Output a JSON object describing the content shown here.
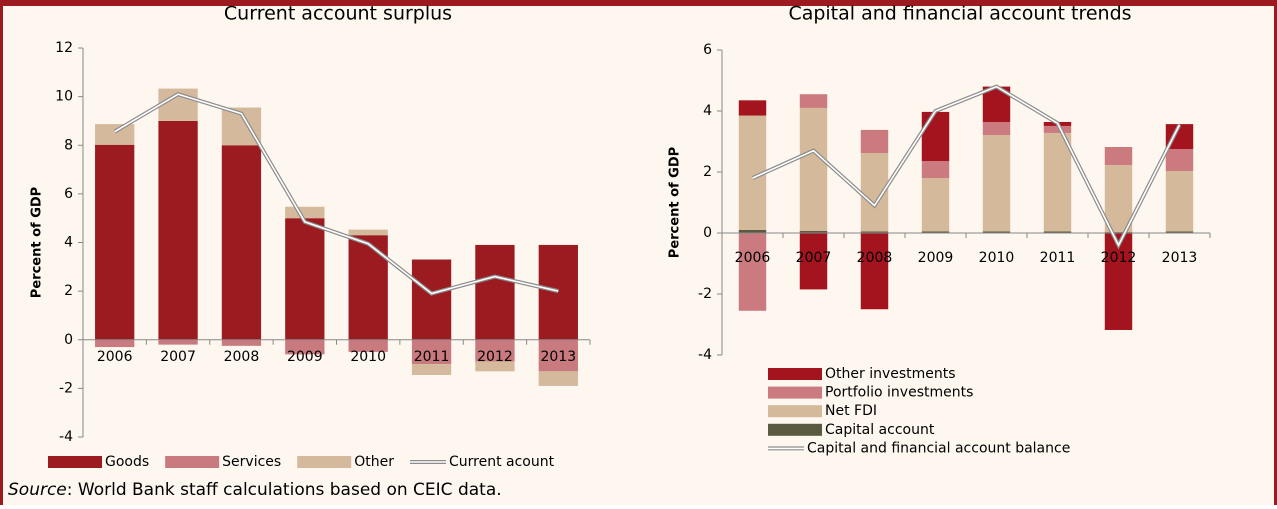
{
  "chart_data": [
    {
      "type": "bar",
      "stacked": true,
      "title": "Current account surplus",
      "y_label": "Percent of GDP",
      "categories": [
        "2006",
        "2007",
        "2008",
        "2009",
        "2010",
        "2011",
        "2012",
        "2013"
      ],
      "series": [
        {
          "name": "Goods",
          "color": "#9b1b20",
          "values": [
            8.02,
            9.0,
            8.0,
            5.0,
            4.3,
            3.3,
            3.9,
            3.9
          ]
        },
        {
          "name": "Services",
          "color": "#c97a7e",
          "values": [
            -0.3,
            -0.2,
            -0.25,
            -0.6,
            -0.5,
            -1.0,
            -0.9,
            -1.3
          ]
        },
        {
          "name": "Other",
          "color": "#d4b99c",
          "values": [
            0.85,
            1.33,
            1.55,
            0.47,
            0.23,
            -0.45,
            -0.4,
            -0.6
          ]
        },
        {
          "name": "Current acount",
          "type": "line",
          "color": "#8c8c8c",
          "values": [
            8.56,
            10.1,
            9.3,
            4.85,
            3.95,
            1.9,
            2.6,
            2.0
          ]
        }
      ],
      "ylim": [
        -4,
        12
      ],
      "yticks": [
        -4,
        -2,
        0,
        2,
        4,
        6,
        8,
        10,
        12
      ],
      "legend": "bottom",
      "legend_direction": "row",
      "legend_order": "as-listed"
    },
    {
      "type": "bar",
      "stacked": true,
      "title": "Capital and financial account trends",
      "y_label": "Percent of GDP",
      "categories": [
        "2006",
        "2007",
        "2008",
        "2009",
        "2010",
        "2011",
        "2012",
        "2013"
      ],
      "series": [
        {
          "name": "Capital account",
          "color": "#5a5a40",
          "values": [
            0.1,
            0.07,
            0.05,
            0.05,
            0.05,
            0.05,
            0.03,
            0.05
          ]
        },
        {
          "name": "Net FDI",
          "color": "#d4b99a",
          "values": [
            3.75,
            4.03,
            2.57,
            1.75,
            3.16,
            3.23,
            2.2,
            1.98
          ]
        },
        {
          "name": "Portfolio investments",
          "color": "#cb7b80",
          "values": [
            -2.55,
            0.45,
            0.76,
            0.56,
            0.43,
            0.23,
            0.59,
            0.72
          ]
        },
        {
          "name": "Other investments",
          "color": "#a3141e",
          "values": [
            0.5,
            -1.85,
            -2.5,
            1.61,
            1.16,
            0.13,
            -3.18,
            0.82
          ]
        },
        {
          "name": "Capital and financial account balance",
          "type": "line",
          "color": "#8c8c8c",
          "values": [
            1.8,
            2.7,
            0.9,
            4.0,
            4.8,
            3.6,
            -0.4,
            3.55
          ]
        }
      ],
      "ylim": [
        -4,
        6
      ],
      "yticks": [
        -4,
        -2,
        0,
        2,
        4,
        6
      ],
      "legend": "bottom",
      "legend_direction": "column",
      "legend_order": "reversed"
    }
  ],
  "source": {
    "label": "Source",
    "text": ": World Bank staff calculations based on CEIC data."
  }
}
